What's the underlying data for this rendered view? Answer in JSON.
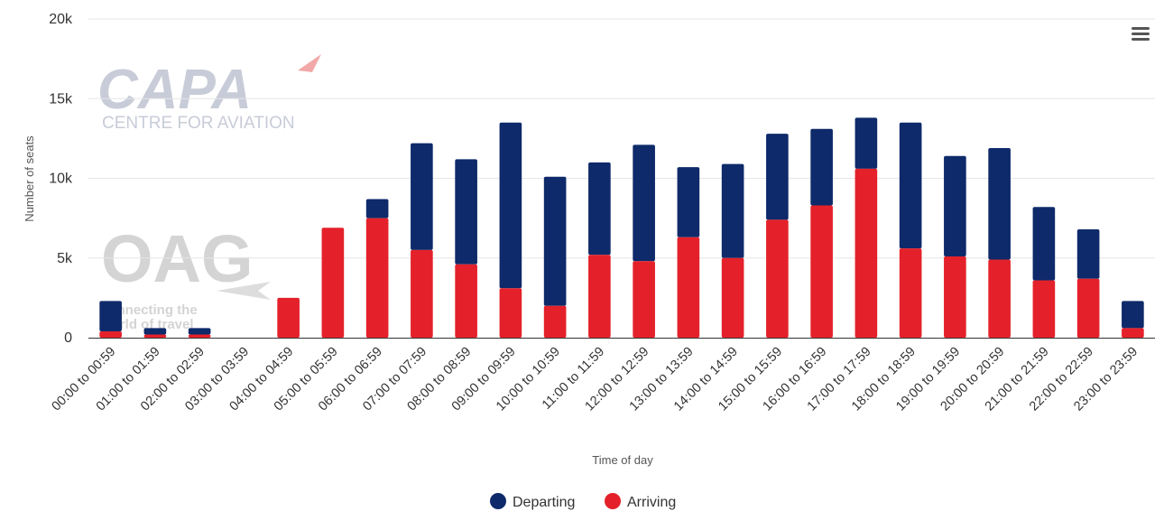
{
  "chart_data": {
    "type": "bar",
    "stacked": true,
    "xlabel": "Time of day",
    "ylabel": "Number of seats",
    "ylim": [
      0,
      20000
    ],
    "yticks": [
      0,
      5000,
      10000,
      15000,
      20000
    ],
    "ytick_labels": [
      "0",
      "5k",
      "10k",
      "15k",
      "20k"
    ],
    "grid": true,
    "legend_position": "bottom-center",
    "categories": [
      "00:00 to 00:59",
      "01:00 to 01:59",
      "02:00 to 02:59",
      "03:00 to 03:59",
      "04:00 to 04:59",
      "05:00 to 05:59",
      "06:00 to 06:59",
      "07:00 to 07:59",
      "08:00 to 08:59",
      "09:00 to 09:59",
      "10:00 to 10:59",
      "11:00 to 11:59",
      "12:00 to 12:59",
      "13:00 to 13:59",
      "14:00 to 14:59",
      "15:00 to 15:59",
      "16:00 to 16:59",
      "17:00 to 17:59",
      "18:00 to 18:59",
      "19:00 to 19:59",
      "20:00 to 20:59",
      "21:00 to 21:59",
      "22:00 to 22:59",
      "23:00 to 23:59"
    ],
    "series": [
      {
        "name": "Departing",
        "color": "#0e2a6a",
        "values": [
          1900,
          400,
          400,
          0,
          0,
          0,
          1200,
          6700,
          6600,
          10400,
          8100,
          5800,
          7300,
          4400,
          5900,
          5400,
          4800,
          3200,
          7900,
          6300,
          7000,
          4600,
          3100,
          1700
        ]
      },
      {
        "name": "Arriving",
        "color": "#e4212a",
        "values": [
          400,
          200,
          200,
          0,
          2500,
          6900,
          7500,
          5500,
          4600,
          3100,
          2000,
          5200,
          4800,
          6300,
          5000,
          7400,
          8300,
          10600,
          5600,
          5100,
          4900,
          3600,
          3700,
          600
        ]
      }
    ]
  },
  "watermark": {
    "capa_title": "CAPA",
    "capa_subtitle": "CENTRE FOR AVIATION",
    "oag_title": "OAG",
    "oag_tagline_1": "connecting the",
    "oag_tagline_2": "world of travel"
  },
  "menu_icon": "hamburger-menu-icon"
}
